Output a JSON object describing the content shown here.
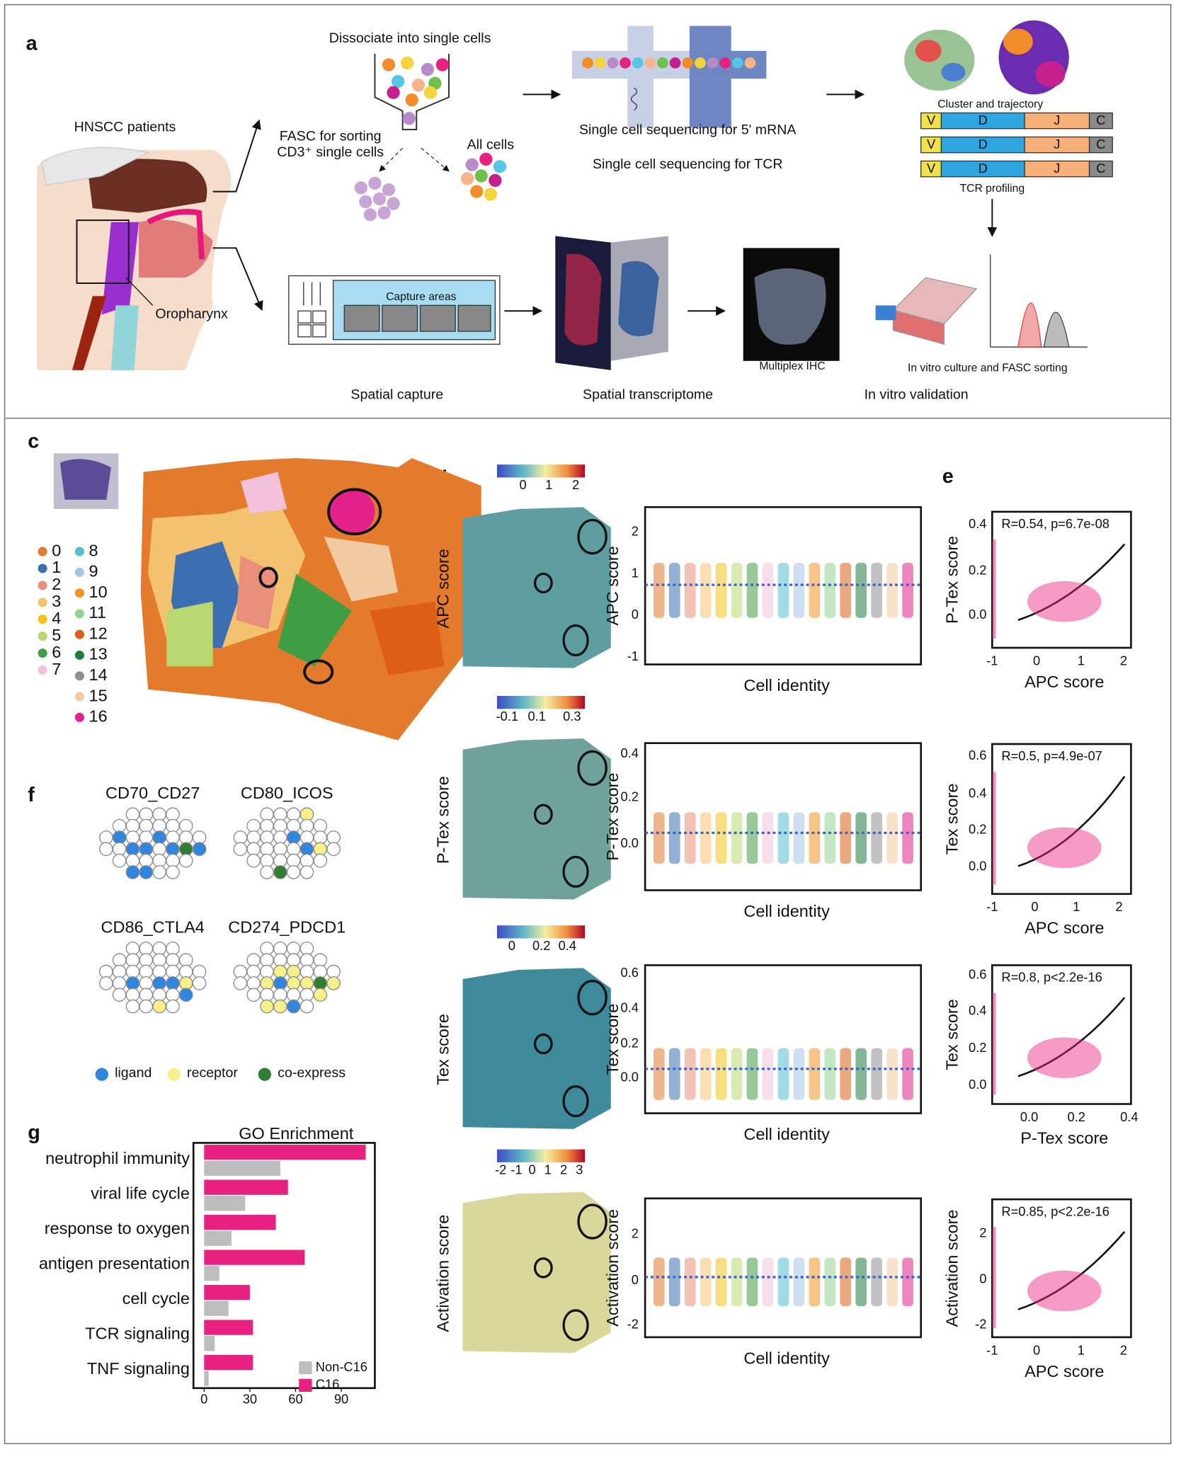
{
  "panel_labels": {
    "a": "a",
    "c": "c",
    "d": "d",
    "e": "e",
    "f": "f",
    "g": "g"
  },
  "panel_a": {
    "dissociate": "Dissociate into single cells",
    "patients": "HNSCC patients",
    "fasc_1": "FASC for sorting",
    "fasc_2": "CD3⁺ single cells",
    "all_cells": "All cells",
    "seq_mrna": "Single cell sequencing for 5' mRNA",
    "seq_tcr": "Single cell sequencing for TCR",
    "cluster": "Cluster and trajectory",
    "tcr_segments": [
      "V",
      "D",
      "J",
      "C"
    ],
    "tcr_profiling": "TCR profiling",
    "oropharynx": "Oropharynx",
    "capture_areas": "Capture areas",
    "spatial_capture": "Spatial capture",
    "spatial_transcriptome": "Spatial transcriptome",
    "multiplex": "Multiplex IHC",
    "in_vitro_culture": "In vitro culture and FASC sorting",
    "in_vitro_validation": "In vitro validation"
  },
  "panel_c": {
    "clusters": [
      "0",
      "1",
      "2",
      "3",
      "4",
      "5",
      "6",
      "7",
      "8",
      "9",
      "10",
      "11",
      "12",
      "13",
      "14",
      "15",
      "16"
    ],
    "colors": [
      "#e37a2c",
      "#3b6fb2",
      "#e9907c",
      "#f2c26f",
      "#f1c417",
      "#b9d86f",
      "#3e9e43",
      "#f3c2da",
      "#53c0d2",
      "#a5c4e4",
      "#f39322",
      "#93d392",
      "#dc5f13",
      "#1f7c3e",
      "#8f8f8f",
      "#f2caa2",
      "#e2218a"
    ]
  },
  "panel_d": {
    "rows": [
      {
        "map_label": "APC score",
        "colorbar_ticks": [
          "0",
          "1",
          "2"
        ],
        "y_label": "APC score",
        "y_ticks": [
          "2",
          "1",
          "0",
          "-1"
        ],
        "x_label": "Cell identity"
      },
      {
        "map_label": "P-Tex score",
        "colorbar_ticks": [
          "-0.1",
          "0.1",
          "0.3"
        ],
        "y_label": "P-Tex score",
        "y_ticks": [
          "0.4",
          "0.2",
          "0.0"
        ],
        "x_label": "Cell identity"
      },
      {
        "map_label": "Tex score",
        "colorbar_ticks": [
          "0",
          "0.2",
          "0.4"
        ],
        "y_label": "Tex score",
        "y_ticks": [
          "0.6",
          "0.4",
          "0.2",
          "0.0"
        ],
        "x_label": "Cell identity"
      },
      {
        "map_label": "Activation score",
        "colorbar_ticks": [
          "-2",
          "-1",
          "0",
          "1",
          "2",
          "3"
        ],
        "y_label": "Activation score",
        "y_ticks": [
          "2",
          "0",
          "-2"
        ],
        "x_label": "Cell identity"
      }
    ]
  },
  "panel_e": {
    "rows": [
      {
        "annotation": "R=0.54, p=6.7e-08",
        "y_label": "P-Tex score",
        "y_ticks": [
          "0.4",
          "0.2",
          "0.0"
        ],
        "x_label": "APC score",
        "x_ticks": [
          "-1",
          "0",
          "1",
          "2"
        ]
      },
      {
        "annotation": "R=0.5, p=4.9e-07",
        "y_label": "Tex score",
        "y_ticks": [
          "0.6",
          "0.4",
          "0.2",
          "0.0"
        ],
        "x_label": "APC score",
        "x_ticks": [
          "-1",
          "0",
          "1",
          "2"
        ]
      },
      {
        "annotation": "R=0.8, p<2.2e-16",
        "y_label": "Tex score",
        "y_ticks": [
          "0.6",
          "0.4",
          "0.2",
          "0.0"
        ],
        "x_label": "P-Tex score",
        "x_ticks": [
          "0.0",
          "0.2",
          "0.4"
        ]
      },
      {
        "annotation": "R=0.85, p<2.2e-16",
        "y_label": "Activation score",
        "y_ticks": [
          "2",
          "0",
          "-2"
        ],
        "x_label": "APC score",
        "x_ticks": [
          "-1",
          "0",
          "1",
          "2"
        ]
      }
    ]
  },
  "panel_f": {
    "titles": [
      "CD70_CD27",
      "CD80_ICOS",
      "CD86_CTLA4",
      "CD274_PDCD1"
    ],
    "legend": [
      "ligand",
      "receptor",
      "co-express"
    ],
    "legend_colors": [
      "#2f86e0",
      "#f5f08a",
      "#2e7d32"
    ]
  },
  "chart_data": {
    "type": "bar",
    "orientation": "horizontal",
    "title": "GO Enrichment",
    "categories": [
      "neutrophil immunity",
      "viral life cycle",
      "response to oxygen",
      "antigen presentation",
      "cell cycle",
      "TCR signaling",
      "TNF signaling"
    ],
    "series": [
      {
        "name": "Non-C16",
        "color": "#bdbdbd",
        "values": [
          50,
          27,
          18,
          10,
          16,
          7,
          3
        ]
      },
      {
        "name": "C16",
        "color": "#e8207f",
        "values": [
          106,
          55,
          47,
          66,
          30,
          32,
          32
        ]
      }
    ],
    "xlim": [
      -7,
      112
    ],
    "xticks": [
      0,
      30,
      60,
      90
    ],
    "legend_position": "bottom-right"
  }
}
